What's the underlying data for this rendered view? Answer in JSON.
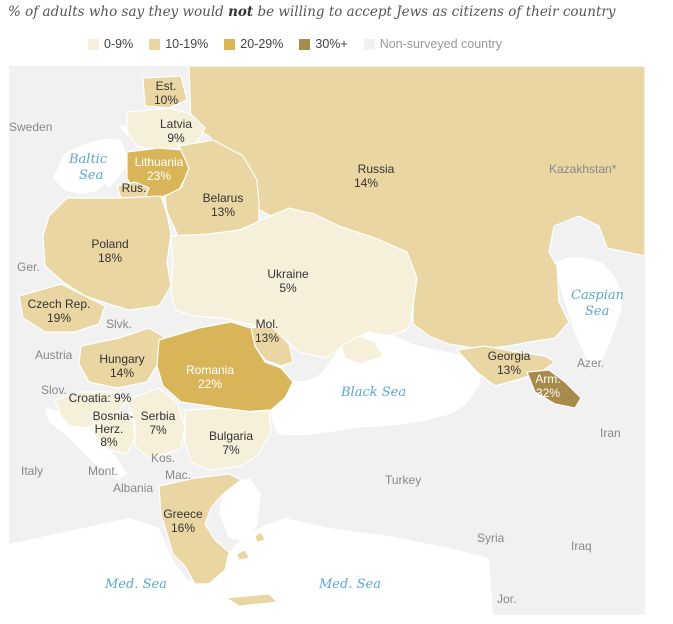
{
  "title": {
    "before": "% of adults who say they would ",
    "emphasis": "not",
    "after": " be willing to accept Jews as citizens of their country"
  },
  "legend": [
    {
      "label": "0-9%",
      "color": "#f6efd9"
    },
    {
      "label": "10-19%",
      "color": "#ead6a3"
    },
    {
      "label": "20-29%",
      "color": "#d7b558"
    },
    {
      "label": "30%+",
      "color": "#a88a4a"
    },
    {
      "label": "Non-surveyed country",
      "color": "#f1f1f1"
    }
  ],
  "colors": {
    "land_nonsurveyed": "#f1f1f1",
    "water": "#ffffff",
    "border": "#ffffff",
    "sea_label": "#5aa7cf"
  },
  "countries": {
    "russia": {
      "name": "Russia",
      "value": "14%"
    },
    "estonia": {
      "name": "Est.",
      "value": "10%"
    },
    "latvia": {
      "name": "Latvia",
      "value": "9%"
    },
    "lithuania": {
      "name": "Lithuania",
      "value": "23%"
    },
    "russia_kal": {
      "name": "Rus."
    },
    "belarus": {
      "name": "Belarus",
      "value": "13%"
    },
    "poland": {
      "name": "Poland",
      "value": "18%"
    },
    "ukraine": {
      "name": "Ukraine",
      "value": "5%"
    },
    "czech": {
      "name": "Czech Rep.",
      "value": "19%"
    },
    "moldova": {
      "name": "Mol.",
      "value": "13%"
    },
    "hungary": {
      "name": "Hungary",
      "value": "14%"
    },
    "romania": {
      "name": "Romania",
      "value": "22%"
    },
    "georgia": {
      "name": "Georgia",
      "value": "13%"
    },
    "armenia": {
      "name": "Arm.",
      "value": "32%"
    },
    "croatia": {
      "name": "Croatia: 9%"
    },
    "bosnia": {
      "name": "Bosnia-",
      "name2": "Herz.",
      "value": "8%"
    },
    "serbia": {
      "name": "Serbia",
      "value": "7%"
    },
    "bulgaria": {
      "name": "Bulgaria",
      "value": "7%"
    },
    "greece": {
      "name": "Greece",
      "value": "16%"
    }
  },
  "nonsurveyed": {
    "sweden": "Sweden",
    "kazakhstan": "Kazakhstan*",
    "germany": "Ger.",
    "slovakia": "Slvk.",
    "austria": "Austria",
    "slovenia": "Slov.",
    "azerbaijan": "Azer.",
    "iran": "Iran",
    "italy": "Italy",
    "montenegro": "Mont.",
    "kosovo": "Kos.",
    "macedonia": "Mac.",
    "albania": "Albania",
    "turkey": "Turkey",
    "syria": "Syria",
    "iraq": "Iraq",
    "jordan": "Jor."
  },
  "seas": {
    "baltic_1": "Baltic",
    "baltic_2": "Sea",
    "caspian_1": "Caspian",
    "caspian_2": "Sea",
    "black": "Black Sea",
    "med_west": "Med. Sea",
    "med_east": "Med. Sea"
  }
}
